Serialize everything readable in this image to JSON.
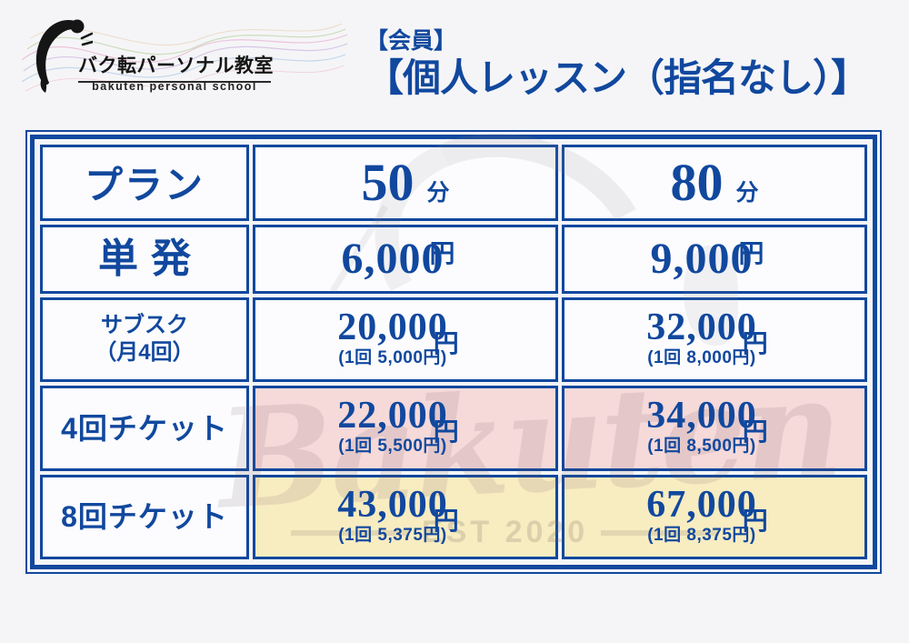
{
  "brand": {
    "logo_title": "バク転パーソナル教室",
    "logo_subtitle": "bakuten personal school"
  },
  "header": {
    "category": "【会員】",
    "title": "【個人レッスン（指名なし）】"
  },
  "watermark": {
    "script_text": "Bakuten",
    "est_text": "EST 2020"
  },
  "colors": {
    "accent_blue": "#11489e",
    "cell_bg": "#fcfcfe",
    "pink_bg": "#f6d9d9",
    "yellow_bg": "#f8ecc1",
    "page_bg": "#f5f5f7"
  },
  "table": {
    "header": {
      "plan_label": "プラン",
      "columns": [
        {
          "duration": "50",
          "unit": "分"
        },
        {
          "duration": "80",
          "unit": "分"
        }
      ]
    },
    "rows": [
      {
        "label": "単発",
        "label_lines": [
          "単発"
        ],
        "size": "large",
        "highlight": "none",
        "prices": [
          {
            "amount": "6,000",
            "per_session": "",
            "currency": "円"
          },
          {
            "amount": "9,000",
            "per_session": "",
            "currency": "円"
          }
        ]
      },
      {
        "label": "サブスク（月4回）",
        "label_lines": [
          "サブスク",
          "（月4回）"
        ],
        "size": "small",
        "highlight": "none",
        "prices": [
          {
            "amount": "20,000",
            "per_session": "(1回 5,000円)",
            "currency": "円"
          },
          {
            "amount": "32,000",
            "per_session": "(1回 8,000円)",
            "currency": "円"
          }
        ]
      },
      {
        "label": "4回チケット",
        "label_lines": [
          "4回チケット"
        ],
        "size": "medium",
        "highlight": "pink",
        "prices": [
          {
            "amount": "22,000",
            "per_session": "(1回 5,500円)",
            "currency": "円"
          },
          {
            "amount": "34,000",
            "per_session": "(1回 8,500円)",
            "currency": "円"
          }
        ]
      },
      {
        "label": "8回チケット",
        "label_lines": [
          "8回チケット"
        ],
        "size": "medium",
        "highlight": "yellow",
        "prices": [
          {
            "amount": "43,000",
            "per_session": "(1回 5,375円)",
            "currency": "円"
          },
          {
            "amount": "67,000",
            "per_session": "(1回 8,375円)",
            "currency": "円"
          }
        ]
      }
    ]
  }
}
